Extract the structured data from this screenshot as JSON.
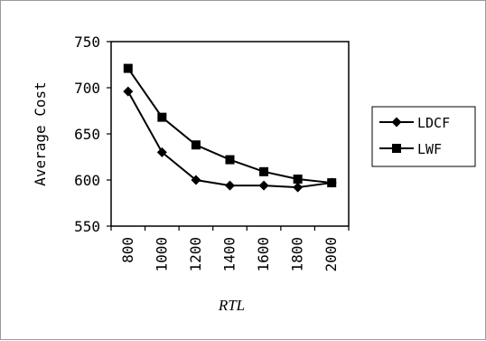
{
  "chart_data": {
    "type": "line",
    "xlabel": "RTL",
    "ylabel": "Average Cost",
    "x": [
      800,
      1000,
      1200,
      1400,
      1600,
      1800,
      2000
    ],
    "x_tick_labels": [
      "800",
      "1000",
      "1200",
      "1400",
      "1600",
      "1800",
      "2000"
    ],
    "ylim": [
      550,
      750
    ],
    "y_ticks": [
      550,
      600,
      650,
      700,
      750
    ],
    "y_tick_labels": [
      "550",
      "600",
      "650",
      "700",
      "750"
    ],
    "grid": false,
    "legend_position": "right",
    "series": [
      {
        "name": "LDCF",
        "marker": "diamond",
        "color": "#000000",
        "values": [
          696,
          630,
          600,
          594,
          594,
          592,
          597
        ]
      },
      {
        "name": "LWF",
        "marker": "square",
        "color": "#000000",
        "values": [
          721,
          668,
          638,
          622,
          609,
          601,
          597
        ]
      }
    ]
  }
}
